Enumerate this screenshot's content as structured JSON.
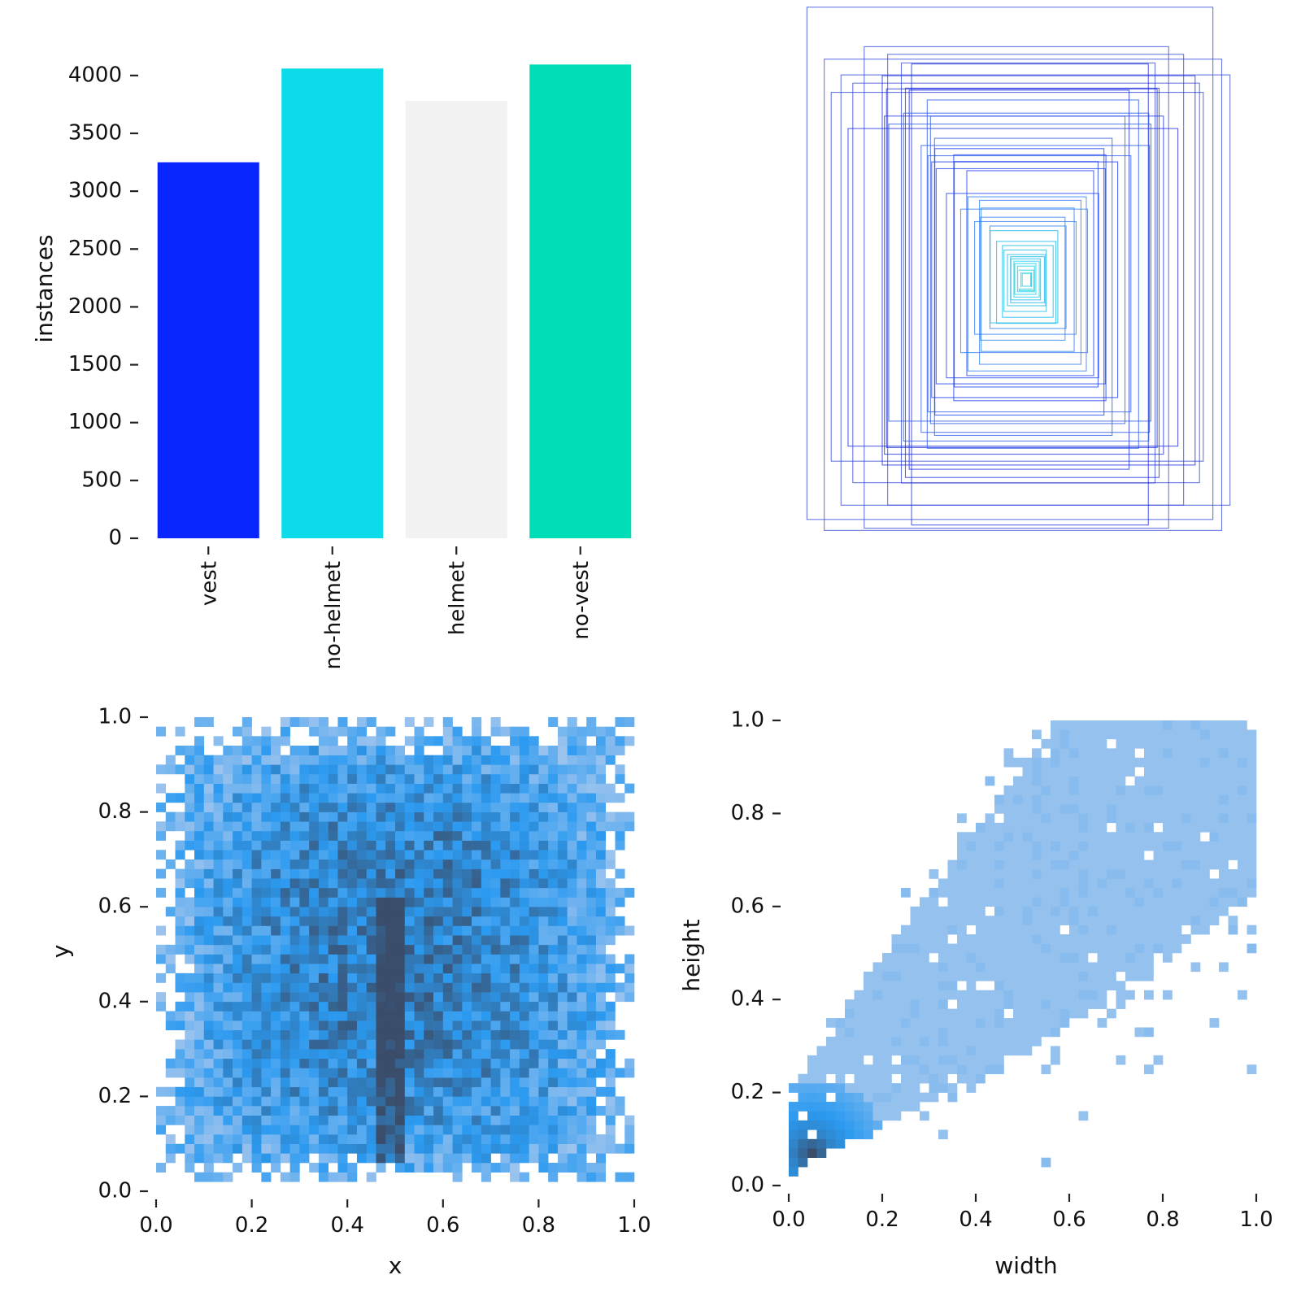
{
  "chart_data": [
    {
      "type": "bar",
      "categories": [
        "vest",
        "no-helmet",
        "helmet",
        "no-vest"
      ],
      "values": [
        3250,
        4060,
        3780,
        4095
      ],
      "colors": [
        "#0a26ff",
        "#0cdcea",
        "#f2f2f2",
        "#00deb8"
      ],
      "ylabel": "instances",
      "ylim": [
        0,
        4280
      ],
      "yticks": [
        "0",
        "500",
        "1000",
        "1500",
        "2000",
        "2500",
        "3000",
        "3500",
        "4000"
      ],
      "ytick_values": [
        0,
        500,
        1000,
        1500,
        2000,
        2500,
        3000,
        3500,
        4000
      ],
      "grid": false,
      "legend": "none"
    },
    {
      "type": "boxes",
      "description_key": "box-overlay",
      "boxes_wh": [
        [
          0.96,
          1.0
        ],
        [
          0.94,
          0.92
        ],
        [
          0.92,
          0.84
        ],
        [
          0.72,
          0.94
        ],
        [
          0.82,
          0.78
        ],
        [
          0.7,
          0.88
        ],
        [
          0.88,
          0.72
        ],
        [
          0.6,
          0.82
        ],
        [
          0.74,
          0.76
        ],
        [
          0.64,
          0.7
        ],
        [
          0.56,
          0.9
        ],
        [
          0.78,
          0.62
        ],
        [
          0.66,
          0.66
        ],
        [
          0.6,
          0.76
        ],
        [
          0.52,
          0.74
        ],
        [
          0.58,
          0.64
        ],
        [
          0.5,
          0.68
        ],
        [
          0.62,
          0.58
        ],
        [
          0.46,
          0.6
        ],
        [
          0.54,
          0.56
        ],
        [
          0.42,
          0.58
        ],
        [
          0.48,
          0.5
        ],
        [
          0.4,
          0.52
        ],
        [
          0.44,
          0.46
        ],
        [
          0.36,
          0.48
        ],
        [
          0.4,
          0.42
        ],
        [
          0.34,
          0.44
        ],
        [
          0.3,
          0.4
        ],
        [
          0.36,
          0.36
        ],
        [
          0.28,
          0.34
        ],
        [
          0.24,
          0.32
        ],
        [
          0.3,
          0.28
        ],
        [
          0.22,
          0.28
        ],
        [
          0.2,
          0.24
        ],
        [
          0.24,
          0.22
        ],
        [
          0.18,
          0.2
        ],
        [
          0.16,
          0.18
        ],
        [
          0.14,
          0.16
        ],
        [
          0.12,
          0.14
        ],
        [
          0.1,
          0.12
        ],
        [
          0.09,
          0.1
        ],
        [
          0.08,
          0.09
        ],
        [
          0.07,
          0.08
        ],
        [
          0.06,
          0.07
        ],
        [
          0.05,
          0.06
        ],
        [
          0.04,
          0.05
        ],
        [
          0.035,
          0.04
        ],
        [
          0.03,
          0.035
        ],
        [
          0.025,
          0.03
        ],
        [
          0.02,
          0.025
        ]
      ]
    },
    {
      "type": "heatmap",
      "description_key": "x-y-histogram",
      "xlabel": "x",
      "ylabel": "y",
      "xlim": [
        0.0,
        1.0
      ],
      "ylim": [
        0.0,
        1.0
      ],
      "xticks": [
        "0.0",
        "0.2",
        "0.4",
        "0.6",
        "0.8",
        "1.0"
      ],
      "yticks": [
        "0.0",
        "0.2",
        "0.4",
        "0.6",
        "0.8",
        "1.0"
      ],
      "tick_values": [
        0.0,
        0.2,
        0.4,
        0.6,
        0.8,
        1.0
      ],
      "bins": 50,
      "x_range": [
        0.01,
        0.99
      ],
      "y_range": [
        0.03,
        0.99
      ],
      "densest": {
        "x": 0.49,
        "y": [
          0.05,
          0.62
        ]
      },
      "color_light": "#a9c8ee",
      "color_mid": "#2b9af0",
      "color_dark": "#3a4d6a"
    },
    {
      "type": "heatmap",
      "description_key": "width-height-histogram",
      "xlabel": "width",
      "ylabel": "height",
      "xlim": [
        0.0,
        1.0
      ],
      "ylim": [
        0.0,
        1.0
      ],
      "xticks": [
        "0.0",
        "0.2",
        "0.4",
        "0.6",
        "0.8",
        "1.0"
      ],
      "yticks": [
        "0.0",
        "0.2",
        "0.4",
        "0.6",
        "0.8",
        "1.0"
      ],
      "tick_values": [
        0.0,
        0.2,
        0.4,
        0.6,
        0.8,
        1.0
      ],
      "bins": 50,
      "densest": {
        "x": 0.05,
        "y": 0.07
      },
      "color_light": "#a9c8ee",
      "color_mid": "#2b9af0",
      "color_dark": "#3a4d6a"
    }
  ]
}
